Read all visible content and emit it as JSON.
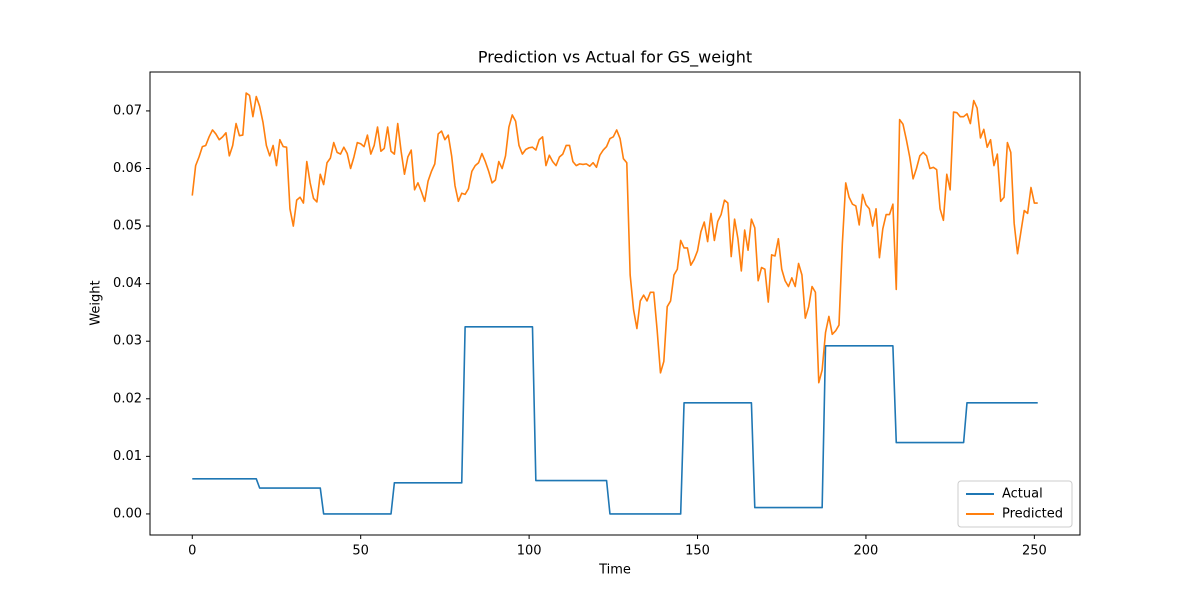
{
  "chart_data": {
    "type": "line",
    "title": "Prediction vs Actual for GS_weight",
    "x_label": "Time",
    "y_label": "Weight",
    "xlim": [
      -12.55,
      263.55
    ],
    "ylim": [
      -0.00366,
      0.07676
    ],
    "xticks": [
      0,
      50,
      100,
      150,
      200,
      250
    ],
    "yticks": [
      {
        "value": 0,
        "label": "0.00"
      },
      0.01,
      0.02,
      0.03,
      0.04,
      0.05,
      0.06,
      0.07
    ],
    "legend": "lower right",
    "grid": false,
    "x": [
      0,
      1,
      2,
      3,
      4,
      5,
      6,
      7,
      8,
      9,
      10,
      11,
      12,
      13,
      14,
      15,
      16,
      17,
      18,
      19,
      20,
      21,
      22,
      23,
      24,
      25,
      26,
      27,
      28,
      29,
      30,
      31,
      32,
      33,
      34,
      35,
      36,
      37,
      38,
      39,
      40,
      41,
      42,
      43,
      44,
      45,
      46,
      47,
      48,
      49,
      50,
      51,
      52,
      53,
      54,
      55,
      56,
      57,
      58,
      59,
      60,
      61,
      62,
      63,
      64,
      65,
      66,
      67,
      68,
      69,
      70,
      71,
      72,
      73,
      74,
      75,
      76,
      77,
      78,
      79,
      80,
      81,
      82,
      83,
      84,
      85,
      86,
      87,
      88,
      89,
      90,
      91,
      92,
      93,
      94,
      95,
      96,
      97,
      98,
      99,
      100,
      101,
      102,
      103,
      104,
      105,
      106,
      107,
      108,
      109,
      110,
      111,
      112,
      113,
      114,
      115,
      116,
      117,
      118,
      119,
      120,
      121,
      122,
      123,
      124,
      125,
      126,
      127,
      128,
      129,
      130,
      131,
      132,
      133,
      134,
      135,
      136,
      137,
      138,
      139,
      140,
      141,
      142,
      143,
      144,
      145,
      146,
      147,
      148,
      149,
      150,
      151,
      152,
      153,
      154,
      155,
      156,
      157,
      158,
      159,
      160,
      161,
      162,
      163,
      164,
      165,
      166,
      167,
      168,
      169,
      170,
      171,
      172,
      173,
      174,
      175,
      176,
      177,
      178,
      179,
      180,
      181,
      182,
      183,
      184,
      185,
      186,
      187,
      188,
      189,
      190,
      191,
      192,
      193,
      194,
      195,
      196,
      197,
      198,
      199,
      200,
      201,
      202,
      203,
      204,
      205,
      206,
      207,
      208,
      209,
      210,
      211,
      212,
      213,
      214,
      215,
      216,
      217,
      218,
      219,
      220,
      221,
      222,
      223,
      224,
      225,
      226,
      227,
      228,
      229,
      230,
      231,
      232,
      233,
      234,
      235,
      236,
      237,
      238,
      239,
      240,
      241,
      242,
      243,
      244,
      245,
      246,
      247,
      248,
      249,
      250,
      251
    ],
    "series": [
      {
        "name": "Actual",
        "color": "#1f77b4",
        "values": [
          0.0061,
          0.0061,
          0.0061,
          0.0061,
          0.0061,
          0.0061,
          0.0061,
          0.0061,
          0.0061,
          0.0061,
          0.0061,
          0.0061,
          0.0061,
          0.0061,
          0.0061,
          0.0061,
          0.0061,
          0.0061,
          0.0061,
          0.0061,
          0.0045,
          0.0045,
          0.0045,
          0.0045,
          0.0045,
          0.0045,
          0.0045,
          0.0045,
          0.0045,
          0.0045,
          0.0045,
          0.0045,
          0.0045,
          0.0045,
          0.0045,
          0.0045,
          0.0045,
          0.0045,
          0.0045,
          0,
          0,
          0,
          0,
          0,
          0,
          0,
          0,
          0,
          0,
          0,
          0,
          0,
          0,
          0,
          0,
          0,
          0,
          0,
          0,
          0,
          0.0054,
          0.0054,
          0.0054,
          0.0054,
          0.0054,
          0.0054,
          0.0054,
          0.0054,
          0.0054,
          0.0054,
          0.0054,
          0.0054,
          0.0054,
          0.0054,
          0.0054,
          0.0054,
          0.0054,
          0.0054,
          0.0054,
          0.0054,
          0.0054,
          0.0325,
          0.0325,
          0.0325,
          0.0325,
          0.0325,
          0.0325,
          0.0325,
          0.0325,
          0.0325,
          0.0325,
          0.0325,
          0.0325,
          0.0325,
          0.0325,
          0.0325,
          0.0325,
          0.0325,
          0.0325,
          0.0325,
          0.0325,
          0.0325,
          0.0058,
          0.0058,
          0.0058,
          0.0058,
          0.0058,
          0.0058,
          0.0058,
          0.0058,
          0.0058,
          0.0058,
          0.0058,
          0.0058,
          0.0058,
          0.0058,
          0.0058,
          0.0058,
          0.0058,
          0.0058,
          0.0058,
          0.0058,
          0.0058,
          0.0058,
          0,
          0,
          0,
          0,
          0,
          0,
          0,
          0,
          0,
          0,
          0,
          0,
          0,
          0,
          0,
          0,
          0,
          0,
          0,
          0,
          0,
          0,
          0.0193,
          0.0193,
          0.0193,
          0.0193,
          0.0193,
          0.0193,
          0.0193,
          0.0193,
          0.0193,
          0.0193,
          0.0193,
          0.0193,
          0.0193,
          0.0193,
          0.0193,
          0.0193,
          0.0193,
          0.0193,
          0.0193,
          0.0193,
          0.0193,
          0.0011,
          0.0011,
          0.0011,
          0.0011,
          0.0011,
          0.0011,
          0.0011,
          0.0011,
          0.0011,
          0.0011,
          0.0011,
          0.0011,
          0.0011,
          0.0011,
          0.0011,
          0.0011,
          0.0011,
          0.0011,
          0.0011,
          0.0011,
          0.0011,
          0.0292,
          0.0292,
          0.0292,
          0.0292,
          0.0292,
          0.0292,
          0.0292,
          0.0292,
          0.0292,
          0.0292,
          0.0292,
          0.0292,
          0.0292,
          0.0292,
          0.0292,
          0.0292,
          0.0292,
          0.0292,
          0.0292,
          0.0292,
          0.0292,
          0.0124,
          0.0124,
          0.0124,
          0.0124,
          0.0124,
          0.0124,
          0.0124,
          0.0124,
          0.0124,
          0.0124,
          0.0124,
          0.0124,
          0.0124,
          0.0124,
          0.0124,
          0.0124,
          0.0124,
          0.0124,
          0.0124,
          0.0124,
          0.0124,
          0.0193,
          0.0193,
          0.0193,
          0.0193,
          0.0193,
          0.0193,
          0.0193,
          0.0193,
          0.0193,
          0.0193,
          0.0193,
          0.0193,
          0.0193,
          0.0193,
          0.0193,
          0.0193,
          0.0193,
          0.0193,
          0.0193,
          0.0193,
          0.0193,
          0.0193
        ]
      },
      {
        "name": "Predicted",
        "color": "#ff7f0e",
        "values": [
          0.0553,
          0.0605,
          0.062,
          0.0638,
          0.064,
          0.0655,
          0.0667,
          0.066,
          0.065,
          0.0655,
          0.0662,
          0.0622,
          0.064,
          0.0678,
          0.0657,
          0.0658,
          0.0731,
          0.0727,
          0.069,
          0.0725,
          0.0708,
          0.068,
          0.064,
          0.0622,
          0.064,
          0.0605,
          0.065,
          0.0638,
          0.0637,
          0.053,
          0.05,
          0.0545,
          0.055,
          0.054,
          0.0612,
          0.0575,
          0.0548,
          0.0542,
          0.059,
          0.0572,
          0.061,
          0.0618,
          0.0645,
          0.0628,
          0.0625,
          0.0637,
          0.0626,
          0.06,
          0.062,
          0.0645,
          0.0643,
          0.0638,
          0.0658,
          0.0625,
          0.064,
          0.0672,
          0.063,
          0.0635,
          0.0672,
          0.063,
          0.0625,
          0.0678,
          0.063,
          0.059,
          0.062,
          0.0632,
          0.0563,
          0.0575,
          0.056,
          0.0543,
          0.0578,
          0.0595,
          0.0608,
          0.066,
          0.0665,
          0.065,
          0.0658,
          0.0622,
          0.057,
          0.0543,
          0.0557,
          0.0555,
          0.0565,
          0.0595,
          0.0605,
          0.061,
          0.0626,
          0.0612,
          0.0595,
          0.0575,
          0.058,
          0.0612,
          0.06,
          0.0622,
          0.0672,
          0.0693,
          0.0682,
          0.064,
          0.0625,
          0.0633,
          0.0636,
          0.0637,
          0.0632,
          0.065,
          0.0655,
          0.0605,
          0.0623,
          0.0612,
          0.0605,
          0.062,
          0.0625,
          0.064,
          0.064,
          0.0612,
          0.0605,
          0.0608,
          0.0607,
          0.0608,
          0.0604,
          0.061,
          0.0602,
          0.0623,
          0.0632,
          0.0638,
          0.0652,
          0.0655,
          0.0667,
          0.0652,
          0.0617,
          0.061,
          0.0415,
          0.0355,
          0.0322,
          0.037,
          0.038,
          0.037,
          0.0385,
          0.0385,
          0.032,
          0.0245,
          0.0265,
          0.036,
          0.037,
          0.0415,
          0.0425,
          0.0475,
          0.0462,
          0.0462,
          0.0432,
          0.0442,
          0.0457,
          0.049,
          0.0507,
          0.0473,
          0.0522,
          0.0475,
          0.0508,
          0.052,
          0.0545,
          0.054,
          0.0447,
          0.0512,
          0.0478,
          0.0422,
          0.0493,
          0.0458,
          0.0512,
          0.0497,
          0.0405,
          0.0428,
          0.0425,
          0.0368,
          0.045,
          0.0448,
          0.0478,
          0.0425,
          0.0405,
          0.0395,
          0.041,
          0.0395,
          0.0435,
          0.0415,
          0.034,
          0.036,
          0.0395,
          0.0385,
          0.0228,
          0.025,
          0.0315,
          0.0343,
          0.0312,
          0.0318,
          0.0328,
          0.047,
          0.0575,
          0.055,
          0.0538,
          0.0535,
          0.0502,
          0.0555,
          0.0537,
          0.053,
          0.05,
          0.053,
          0.0445,
          0.0495,
          0.052,
          0.052,
          0.0538,
          0.039,
          0.0685,
          0.0677,
          0.065,
          0.062,
          0.0582,
          0.06,
          0.0622,
          0.0628,
          0.0622,
          0.06,
          0.0602,
          0.0598,
          0.053,
          0.051,
          0.059,
          0.0563,
          0.0698,
          0.0697,
          0.069,
          0.069,
          0.0695,
          0.0678,
          0.0718,
          0.0705,
          0.0653,
          0.0668,
          0.0637,
          0.065,
          0.0605,
          0.0625,
          0.0543,
          0.055,
          0.0645,
          0.0628,
          0.0505,
          0.0452,
          0.049,
          0.0527,
          0.0522,
          0.0567,
          0.054,
          0.054
        ]
      }
    ]
  }
}
